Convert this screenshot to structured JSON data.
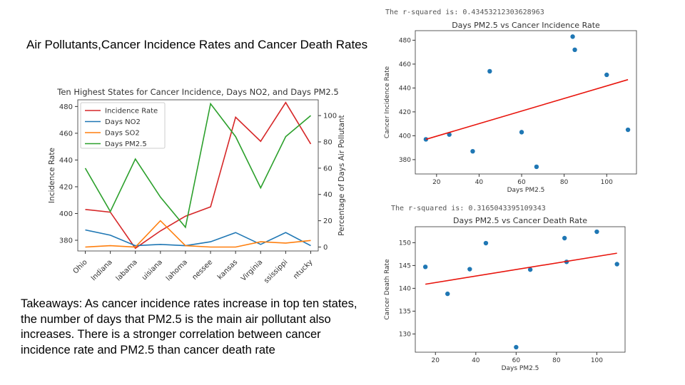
{
  "slide": {
    "title": "Air Pollutants,Cancer Incidence Rates and Cancer Death Rates",
    "takeaways": "Takeaways: As cancer incidence rates increase in top ten states, the number of days that PM2.5 is the main air pollutant also increases. There is a stronger correlation between cancer incidence rate and PM2.5 than cancer death rate"
  },
  "colors": {
    "red": "#d62728",
    "blue": "#1f77b4",
    "orange": "#ff7f0e",
    "green": "#2ca02c"
  },
  "chart_data": [
    {
      "type": "line",
      "title": "Ten Highest States for Cancer Incidence, Days NO2, and Days PM2.5",
      "categories": [
        "Ohio",
        "Indiana",
        "Alabama",
        "Louisiana",
        "Oklahoma",
        "Tennessee",
        "Arkansas",
        "West Virginia",
        "Mississippi",
        "Kentucky"
      ],
      "category_labels_visible": [
        "Ohio",
        "Indiana",
        "labama",
        "uisiana",
        "lahoma",
        "nessee",
        "kansas",
        "Virginia",
        "ssissippi",
        "ntucky"
      ],
      "ylabel": "Incidence Rate",
      "y2label": "Percentage of Days Air Pollutant",
      "ylim": [
        372,
        485
      ],
      "y2lim": [
        -3,
        112
      ],
      "yticks": [
        380,
        400,
        420,
        440,
        460,
        480
      ],
      "y2ticks": [
        0,
        20,
        40,
        60,
        80,
        100
      ],
      "legend": "upper-left",
      "series": [
        {
          "name": "Incidence Rate",
          "axis": "left",
          "color": "#d62728",
          "values": [
            403,
            401,
            374,
            387,
            398,
            405,
            472,
            454,
            483,
            452
          ]
        },
        {
          "name": "Days NO2",
          "axis": "right",
          "color": "#1f77b4",
          "values": [
            13,
            9,
            1,
            2,
            1,
            4,
            11,
            2,
            11,
            1
          ]
        },
        {
          "name": "Days SO2",
          "axis": "right",
          "color": "#ff7f0e",
          "values": [
            0,
            1,
            0,
            20,
            1,
            0,
            0,
            4,
            3,
            5
          ]
        },
        {
          "name": "Days PM2.5",
          "axis": "right",
          "color": "#2ca02c",
          "values": [
            60,
            27,
            67,
            38,
            15,
            109,
            84,
            45,
            84,
            100
          ]
        }
      ]
    },
    {
      "type": "scatter",
      "title": "Days PM2.5 vs Cancer Incidence Rate",
      "rsquared_text": "The r-squared is: 0.43453212303628963",
      "xlabel": "Days PM2.5",
      "ylabel": "Cancer Incidence Rate",
      "xlim": [
        10,
        114
      ],
      "ylim": [
        368,
        488
      ],
      "xticks": [
        20,
        40,
        60,
        80,
        100
      ],
      "yticks": [
        380,
        400,
        420,
        440,
        460,
        480
      ],
      "points": [
        [
          15,
          397
        ],
        [
          26,
          401
        ],
        [
          37,
          387
        ],
        [
          45,
          454
        ],
        [
          60,
          403
        ],
        [
          67,
          374
        ],
        [
          84,
          483
        ],
        [
          85,
          472
        ],
        [
          100,
          451
        ],
        [
          110,
          405
        ]
      ],
      "fit": {
        "x": [
          15,
          110
        ],
        "y": [
          397,
          447
        ]
      }
    },
    {
      "type": "scatter",
      "title": "Days PM2.5 vs Cancer Death Rate",
      "rsquared_text": "The r-squared is: 0.3165043395109343",
      "xlabel": "Days PM2.5",
      "ylabel": "Cancer Death Rate",
      "xlim": [
        10,
        114
      ],
      "ylim": [
        126,
        153.5
      ],
      "xticks": [
        20,
        40,
        60,
        80,
        100
      ],
      "yticks": [
        130,
        135,
        140,
        145,
        150
      ],
      "points": [
        [
          15,
          144.7
        ],
        [
          26,
          138.8
        ],
        [
          37,
          144.2
        ],
        [
          45,
          149.9
        ],
        [
          60,
          127.1
        ],
        [
          67,
          144.1
        ],
        [
          84,
          151.0
        ],
        [
          85,
          145.8
        ],
        [
          100,
          152.4
        ],
        [
          110,
          145.3
        ]
      ],
      "fit": {
        "x": [
          15,
          110
        ],
        "y": [
          140.9,
          147.7
        ]
      }
    }
  ]
}
